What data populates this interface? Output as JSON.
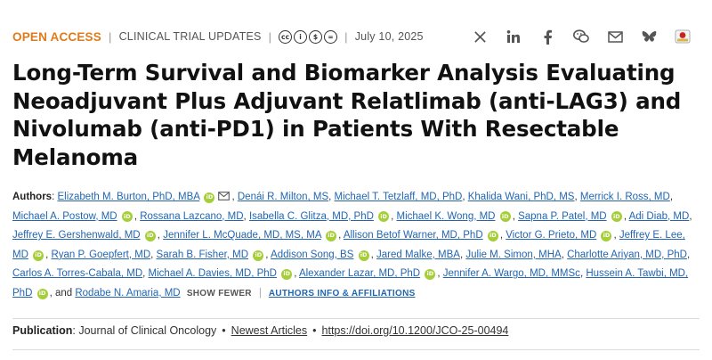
{
  "meta": {
    "access": "OPEN ACCESS",
    "category": "CLINICAL TRIAL UPDATES",
    "license_icons": [
      "cc",
      "by",
      "nc",
      "nd"
    ],
    "date": "July 10, 2025"
  },
  "share": [
    {
      "name": "x-icon"
    },
    {
      "name": "linkedin-icon"
    },
    {
      "name": "facebook-icon"
    },
    {
      "name": "wechat-icon"
    },
    {
      "name": "email-icon"
    },
    {
      "name": "bluesky-icon"
    },
    {
      "name": "mendeley-icon"
    }
  ],
  "title": "Long-Term Survival and Biomarker Analysis Evaluating Neoadjuvant Plus Adjuvant Relatlimab (anti-LAG3) and Nivolumab (anti-PD1) in Patients With Resectable Melanoma",
  "authors_label": "Authors",
  "authors": [
    {
      "name": "Elizabeth M. Burton, PhD, MBA",
      "orcid": true,
      "mail": true
    },
    {
      "name": "Denái R. Milton, MS",
      "orcid": false
    },
    {
      "name": "Michael T. Tetzlaff, MD, PhD",
      "orcid": false
    },
    {
      "name": "Khalida Wani, PhD, MS",
      "orcid": false
    },
    {
      "name": "Merrick I. Ross, MD",
      "orcid": false
    },
    {
      "name": "Michael A. Postow, MD",
      "orcid": true
    },
    {
      "name": "Rossana Lazcano, MD",
      "orcid": false
    },
    {
      "name": "Isabella C. Glitza, MD, PhD",
      "orcid": true
    },
    {
      "name": "Michael K. Wong, MD",
      "orcid": true
    },
    {
      "name": "Sapna P. Patel, MD",
      "orcid": true
    },
    {
      "name": "Adi Diab, MD",
      "orcid": false
    },
    {
      "name": "Jeffrey E. Gershenwald, MD",
      "orcid": true
    },
    {
      "name": "Jennifer L. McQuade, MD, MS, MA",
      "orcid": true
    },
    {
      "name": "Allison Betof Warner, MD, PhD",
      "orcid": true
    },
    {
      "name": "Victor G. Prieto, MD",
      "orcid": true
    },
    {
      "name": "Jeffrey E. Lee, MD",
      "orcid": true
    },
    {
      "name": "Ryan P. Goepfert, MD",
      "orcid": false
    },
    {
      "name": "Sarah B. Fisher, MD",
      "orcid": true
    },
    {
      "name": "Addison Song, BS",
      "orcid": true
    },
    {
      "name": "Jared Malke, MBA",
      "orcid": false
    },
    {
      "name": "Julie M. Simon, MHA",
      "orcid": false
    },
    {
      "name": "Charlotte Ariyan, MD, PhD",
      "orcid": false
    },
    {
      "name": "Carlos A. Torres-Cabala, MD",
      "orcid": false
    },
    {
      "name": "Michael A. Davies, MD, PhD",
      "orcid": true
    },
    {
      "name": "Alexander Lazar, MD, PhD",
      "orcid": true
    },
    {
      "name": "Jennifer A. Wargo, MD, MMSc",
      "orcid": false
    },
    {
      "name": "Hussein A. Tawbi, MD, PhD",
      "orcid": true
    },
    {
      "name": "Rodabe N. Amaria, MD",
      "orcid": false
    }
  ],
  "and_word": "and",
  "show_fewer": "SHOW FEWER",
  "affiliations": "AUTHORS INFO & AFFILIATIONS",
  "publication": {
    "label": "Publication",
    "journal": "Journal of Clinical Oncology",
    "section": "Newest Articles",
    "doi": "https://doi.org/10.1200/JCO-25-00494"
  }
}
